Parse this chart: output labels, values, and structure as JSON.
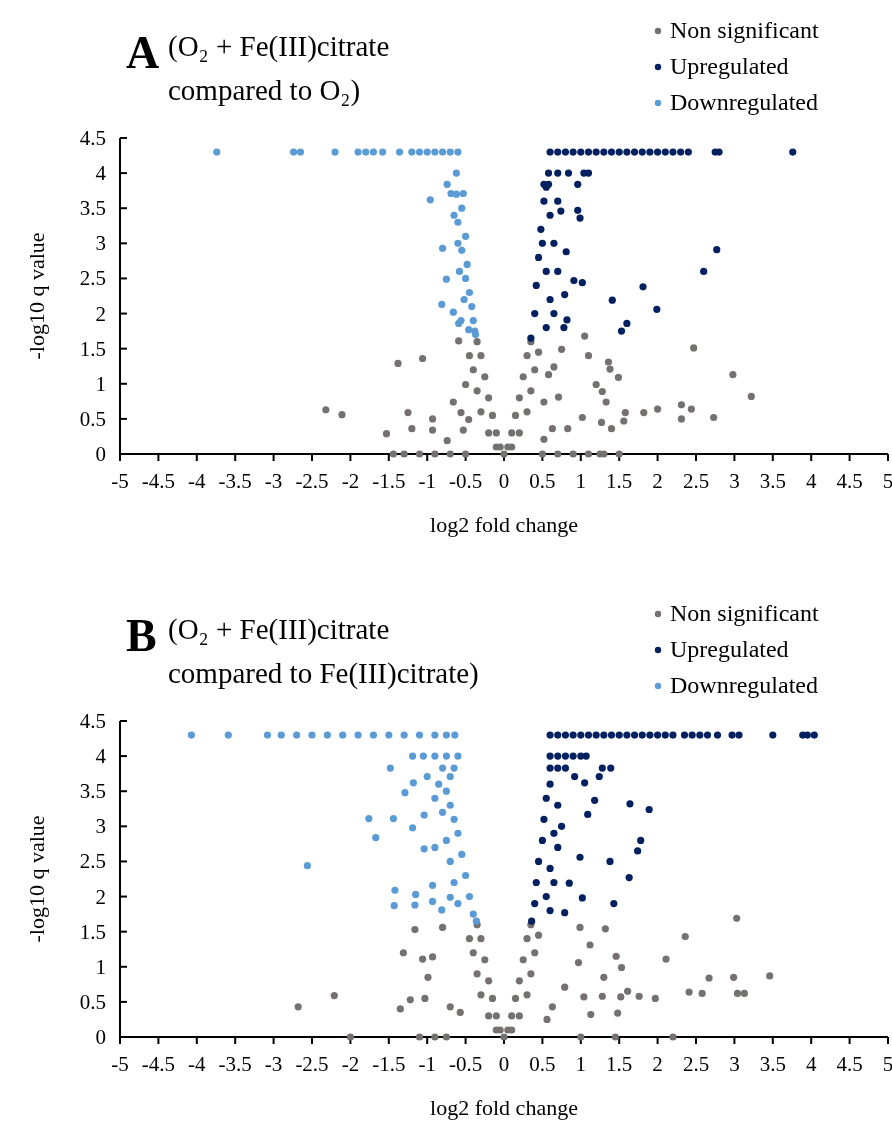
{
  "chart_data": [
    {
      "type": "scatter",
      "title": "A",
      "subtitle": "(O₂ + Fe(III)citrate compared to O₂)",
      "xlabel": "log2 fold change",
      "ylabel": "-log10 q value",
      "xlim": [
        -5,
        5
      ],
      "ylim": [
        0,
        4.5
      ],
      "xticks": [
        -5,
        -4.5,
        -4,
        -3.5,
        -3,
        -2.5,
        -2,
        -1.5,
        -1,
        -0.5,
        0,
        0.5,
        1,
        1.5,
        2,
        2.5,
        3,
        3.5,
        4,
        4.5,
        5
      ],
      "yticks": [
        0,
        0.5,
        1,
        1.5,
        2,
        2.5,
        3,
        3.5,
        4,
        4.5
      ],
      "grid": false,
      "legend": "top right",
      "marker": "circle",
      "series": [
        {
          "name": "Non significant",
          "color": "#767171",
          "x": [
            -1.38,
            -1.06,
            -2.32,
            -2.11,
            -1.53,
            -1.25,
            -1.2,
            -0.93,
            -0.93,
            -0.74,
            -0.59,
            -1.44,
            -1.3,
            -1.1,
            -0.9,
            -0.7,
            -0.5,
            0.5,
            0.7,
            0.9,
            1.1,
            1.25,
            1.3,
            1.5,
            1.05,
            2.47,
            2.98,
            3.22,
            1.36,
            1.1,
            1.49,
            1.38,
            1.2,
            1.28,
            1.33,
            2.31,
            2.44,
            2.73,
            2.31,
            2.0,
            1.82,
            1.58,
            1.56,
            1.4,
            1.27,
            1.02,
            0.83,
            0.63,
            0.52,
            0.75,
            0.65,
            0.58,
            0.71,
            0.52,
            -0.66,
            -0.56,
            -0.5,
            -0.46,
            -0.53,
            -0.3,
            -0.25,
            -0.2,
            -0.15,
            -0.1,
            -0.05,
            0,
            0.05,
            0.1,
            0.15,
            0.2,
            0.25,
            0.3,
            -0.35,
            0.35,
            -0.4,
            -0.35,
            0.4,
            0.35,
            -0.3,
            0.3,
            -0.2,
            0.2,
            -0.45,
            0.45,
            -0.1,
            0.1
          ],
          "values": [
            1.29,
            1.36,
            0.63,
            0.56,
            0.29,
            0.59,
            0.36,
            0.5,
            0.34,
            0.19,
            1.61,
            0,
            0,
            0,
            0,
            0,
            0,
            0,
            0,
            0,
            0,
            0,
            0,
            0,
            1.68,
            1.51,
            1.13,
            0.82,
            1.31,
            1.4,
            1.09,
            1.21,
            0.99,
            0.89,
            0.74,
            0.7,
            0.64,
            0.52,
            0.5,
            0.64,
            0.59,
            0.59,
            0.47,
            0.36,
            0.45,
            0.52,
            0.36,
            0.36,
            0.21,
            1.49,
            1.24,
            1.13,
            0.81,
            0.74,
            0.74,
            0.59,
            0.99,
            0.49,
            0.34,
            1.4,
            1.1,
            0.8,
            0.55,
            0.3,
            0.1,
            0,
            0.1,
            0.3,
            0.55,
            0.8,
            1.1,
            1.4,
            1.6,
            1.6,
            1.2,
            0.9,
            1.2,
            0.9,
            0.6,
            0.6,
            0.3,
            0.3,
            1.4,
            1.45,
            0.1,
            0.1
          ]
        },
        {
          "name": "Upregulated",
          "color": "#002060",
          "x": [
            0.6,
            0.7,
            0.8,
            0.9,
            1.0,
            1.1,
            1.2,
            1.3,
            1.4,
            1.5,
            1.6,
            1.7,
            1.8,
            1.9,
            2.0,
            2.1,
            2.2,
            2.3,
            2.4,
            2.75,
            2.8,
            3.76,
            0.58,
            0.7,
            0.84,
            1.04,
            1.1,
            0.52,
            0.58,
            0.96,
            2.77,
            2.6,
            1.81,
            1.41,
            1.99,
            1.6,
            1.53,
            0.91,
            1.02,
            0.96,
            0.99,
            0.81,
            0.79,
            0.82,
            0.78,
            0.74,
            0.35,
            0.4,
            0.42,
            0.45,
            0.48,
            0.52,
            0.55,
            0.5,
            0.55,
            0.6,
            0.6,
            0.65,
            0.7,
            0.65,
            0.55,
            0.7
          ],
          "values": [
            4.3,
            4.3,
            4.3,
            4.3,
            4.3,
            4.3,
            4.3,
            4.3,
            4.3,
            4.3,
            4.3,
            4.3,
            4.3,
            4.3,
            4.3,
            4.3,
            4.3,
            4.3,
            4.3,
            4.3,
            4.3,
            4.3,
            4,
            4,
            4,
            4,
            4,
            3.84,
            3.84,
            3.84,
            2.91,
            2.6,
            2.38,
            2.19,
            2.06,
            1.86,
            1.75,
            2.47,
            2.44,
            3.47,
            3.36,
            2.88,
            2.27,
            1.91,
            1.8,
            3.46,
            1.65,
            2.0,
            2.4,
            2.8,
            3.2,
            3.6,
            3.8,
            3.0,
            2.6,
            2.2,
            3.4,
            3.0,
            2.6,
            2.0,
            1.8,
            3.6
          ]
        },
        {
          "name": "Downregulated",
          "color": "#5b9bd5",
          "x": [
            -3.74,
            -2.74,
            -2.65,
            -2.2,
            -1.9,
            -1.8,
            -1.7,
            -1.58,
            -1.36,
            -1.2,
            -1.1,
            -1.0,
            -0.9,
            -0.8,
            -0.7,
            -0.6,
            -0.62,
            -0.74,
            -0.69,
            -0.53,
            -0.96,
            -0.8,
            -0.75,
            -0.81,
            -0.66,
            -0.59,
            -0.46,
            -0.37,
            -0.62,
            -0.55,
            -0.6,
            -0.5,
            -0.55,
            -0.48,
            -0.5,
            -0.45,
            -0.42,
            -0.4,
            -0.38,
            -0.6,
            -0.65,
            -0.58,
            -0.52,
            -0.56
          ],
          "values": [
            4.3,
            4.3,
            4.3,
            4.3,
            4.3,
            4.3,
            4.3,
            4.3,
            4.3,
            4.3,
            4.3,
            4.3,
            4.3,
            4.3,
            4.3,
            4.3,
            4,
            3.84,
            3.71,
            3.71,
            3.62,
            2.93,
            2.49,
            2.13,
            2.02,
            1.86,
            1.77,
            1.7,
            3.7,
            3.5,
            3.3,
            3.1,
            2.9,
            2.7,
            2.5,
            2.3,
            2.1,
            1.9,
            1.75,
            3.0,
            3.4,
            2.6,
            2.2,
            1.9
          ]
        }
      ]
    },
    {
      "type": "scatter",
      "title": "B",
      "subtitle": "(O₂ + Fe(III)citrate compared to Fe(III)citrate)",
      "xlabel": "log2 fold change",
      "ylabel": "-log10 q value",
      "xlim": [
        -5,
        5
      ],
      "ylim": [
        0,
        4.5
      ],
      "xticks": [
        -5,
        -4.5,
        -4,
        -3.5,
        -3,
        -2.5,
        -2,
        -1.5,
        -1,
        -0.5,
        0,
        0.5,
        1,
        1.5,
        2,
        2.5,
        3,
        3.5,
        4,
        4.5,
        5
      ],
      "yticks": [
        0,
        0.5,
        1,
        1.5,
        2,
        2.5,
        3,
        3.5,
        4,
        4.5
      ],
      "grid": false,
      "legend": "top right",
      "marker": "circle",
      "series": [
        {
          "name": "Non significant",
          "color": "#767171",
          "x": [
            -2.68,
            -2.21,
            -1.35,
            -1.22,
            -1.03,
            -1.31,
            -1.16,
            -1.06,
            -0.93,
            -0.99,
            -0.8,
            -0.7,
            -0.57,
            3.03,
            2.36,
            2.11,
            1.46,
            1.32,
            1.12,
            0.99,
            3.46,
            2.99,
            2.67,
            3.04,
            3.13,
            2.58,
            2.41,
            1.97,
            1.76,
            1.61,
            1.52,
            1.48,
            1.28,
            1.13,
            1.04,
            1.3,
            1.53,
            0.97,
            0.79,
            0.63,
            0.56,
            -2.0,
            -1.1,
            -0.9,
            -0.75,
            1.0,
            1.45,
            2.2,
            -0.3,
            -0.25,
            -0.2,
            -0.15,
            -0.1,
            -0.05,
            0,
            0.05,
            0.1,
            0.15,
            0.2,
            0.25,
            0.3,
            -0.35,
            0.35,
            -0.4,
            -0.35,
            0.4,
            0.35,
            -0.3,
            0.3,
            -0.2,
            0.2,
            -0.45,
            0.45,
            -0.1,
            0.1
          ],
          "values": [
            0.43,
            0.59,
            0.4,
            0.53,
            0.55,
            1.2,
            1.53,
            1.11,
            1.14,
            0.85,
            1.56,
            0.43,
            0.35,
            1.69,
            1.43,
            1.11,
            1.15,
            1.54,
            1.31,
            1.56,
            0.87,
            0.85,
            0.84,
            0.62,
            0.62,
            0.62,
            0.64,
            0.55,
            0.58,
            0.65,
            0.57,
            0.34,
            0.58,
            0.32,
            0.57,
            0.85,
            0.99,
            1.06,
            0.71,
            0.43,
            0.25,
            0,
            0,
            0,
            0,
            0,
            0,
            0,
            1.4,
            1.1,
            0.8,
            0.55,
            0.3,
            0.1,
            0,
            0.1,
            0.3,
            0.55,
            0.8,
            1.1,
            1.4,
            1.6,
            1.6,
            1.2,
            0.9,
            1.2,
            0.9,
            0.6,
            0.6,
            0.3,
            0.3,
            1.4,
            1.45,
            0.1,
            0.1
          ]
        },
        {
          "name": "Upregulated",
          "color": "#002060",
          "x": [
            0.6,
            0.7,
            0.8,
            0.9,
            1.0,
            1.1,
            1.2,
            1.3,
            1.4,
            1.5,
            1.6,
            1.7,
            1.8,
            1.9,
            2.0,
            2.1,
            2.2,
            2.35,
            2.45,
            2.55,
            2.65,
            2.78,
            2.97,
            3.06,
            3.5,
            3.89,
            3.95,
            4.04,
            0.6,
            0.7,
            0.8,
            0.9,
            1.0,
            1.07,
            0.6,
            0.7,
            0.8,
            1.28,
            1.39,
            1.64,
            1.89,
            1.78,
            1.74,
            1.38,
            1.63,
            1.43,
            1.02,
            0.99,
            1.09,
            1.18,
            1.05,
            1.24,
            0.92,
            0.85,
            0.79,
            0.36,
            0.4,
            0.42,
            0.45,
            0.5,
            0.52,
            0.55,
            0.6,
            0.55,
            0.6,
            0.65,
            0.7,
            0.65,
            0.7,
            0.75,
            0.6
          ],
          "values": [
            4.3,
            4.3,
            4.3,
            4.3,
            4.3,
            4.3,
            4.3,
            4.3,
            4.3,
            4.3,
            4.3,
            4.3,
            4.3,
            4.3,
            4.3,
            4.3,
            4.3,
            4.3,
            4.3,
            4.3,
            4.3,
            4.3,
            4.3,
            4.3,
            4.3,
            4.3,
            4.3,
            4.3,
            4,
            4,
            4,
            4,
            4,
            4,
            3.83,
            3.83,
            3.83,
            3.83,
            3.83,
            3.32,
            3.24,
            2.8,
            2.65,
            2.5,
            2.27,
            1.9,
            1.98,
            2.56,
            3.17,
            3.37,
            3.62,
            3.71,
            3.71,
            2.19,
            1.77,
            1.65,
            1.9,
            2.2,
            2.5,
            2.8,
            3.1,
            3.4,
            3.6,
            2.0,
            2.4,
            2.9,
            3.3,
            2.2,
            2.7,
            3.0,
            1.8
          ]
        },
        {
          "name": "Downregulated",
          "color": "#5b9bd5",
          "x": [
            -4.07,
            -3.59,
            -3.08,
            -2.9,
            -2.7,
            -2.5,
            -2.3,
            -2.1,
            -1.9,
            -1.7,
            -1.5,
            -1.3,
            -1.1,
            -0.9,
            -0.75,
            -0.64,
            -1.19,
            -1.05,
            -0.9,
            -0.75,
            -0.6,
            -1.48,
            -0.8,
            -0.65,
            -1.0,
            -0.7,
            -1.18,
            -1.29,
            -1.76,
            -1.44,
            -1.67,
            -1.19,
            -1.04,
            -2.56,
            -1.04,
            -0.9,
            -1.42,
            -1.43,
            -1.15,
            -1.16,
            -0.93,
            -0.93,
            -0.81,
            -0.7,
            -0.75,
            -0.7,
            -0.65,
            -0.6,
            -0.55,
            -0.5,
            -0.45,
            -0.4,
            -0.36,
            -0.8,
            -0.75,
            -0.7,
            -0.65,
            -0.6,
            -0.85,
            -0.9
          ],
          "values": [
            4.3,
            4.3,
            4.3,
            4.3,
            4.3,
            4.3,
            4.3,
            4.3,
            4.3,
            4.3,
            4.3,
            4.3,
            4.3,
            4.3,
            4.3,
            4.3,
            4,
            4,
            4,
            4,
            4,
            3.83,
            3.83,
            3.83,
            3.71,
            3.71,
            3.62,
            3.48,
            3.11,
            3.11,
            2.84,
            2.98,
            3.16,
            2.44,
            2.68,
            2.7,
            2.09,
            1.87,
            2.03,
            1.88,
            2.16,
            1.93,
            1.81,
            1.99,
            3.5,
            3.3,
            3.1,
            2.9,
            2.6,
            2.3,
            2.0,
            1.75,
            1.65,
            3.2,
            2.8,
            2.5,
            2.2,
            1.9,
            3.6,
            3.4
          ]
        }
      ]
    }
  ]
}
